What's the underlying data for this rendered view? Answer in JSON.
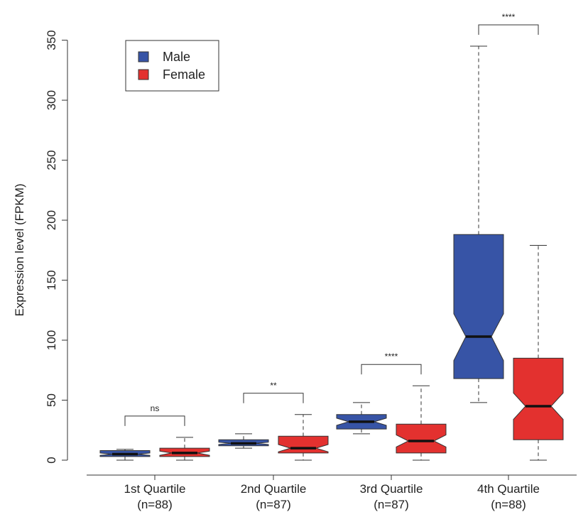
{
  "chart_data": {
    "type": "boxplot",
    "title": "",
    "ylabel": "Expression level (FPKM)",
    "xlabel": "",
    "ylim": [
      0,
      350
    ],
    "yticks": [
      0,
      50,
      100,
      150,
      200,
      250,
      300,
      350
    ],
    "grid": false,
    "notched": true,
    "legend": {
      "position": "top-left",
      "entries": [
        {
          "name": "Male",
          "color": "#3754a6"
        },
        {
          "name": "Female",
          "color": "#e3312f"
        }
      ]
    },
    "groups": [
      {
        "label": "1st Quartile",
        "sublabel": "(n=88)",
        "significance": "ns",
        "boxes": [
          {
            "series": "Male",
            "whisker_low": 0,
            "q1": 3,
            "median": 5,
            "q3": 8,
            "whisker_high": 9,
            "notch_low": 4,
            "notch_high": 6
          },
          {
            "series": "Female",
            "whisker_low": 0,
            "q1": 3,
            "median": 6,
            "q3": 10,
            "whisker_high": 19,
            "notch_low": 4,
            "notch_high": 7.5
          }
        ]
      },
      {
        "label": "2nd Quartile",
        "sublabel": "(n=87)",
        "significance": "**",
        "boxes": [
          {
            "series": "Male",
            "whisker_low": 10,
            "q1": 12,
            "median": 14,
            "q3": 17,
            "whisker_high": 22,
            "notch_low": 13,
            "notch_high": 15
          },
          {
            "series": "Female",
            "whisker_low": 0,
            "q1": 6,
            "median": 10,
            "q3": 20,
            "whisker_high": 38,
            "notch_low": 7,
            "notch_high": 13
          }
        ]
      },
      {
        "label": "3rd Quartile",
        "sublabel": "(n=87)",
        "significance": "****",
        "boxes": [
          {
            "series": "Male",
            "whisker_low": 22,
            "q1": 26,
            "median": 32,
            "q3": 38,
            "whisker_high": 48,
            "notch_low": 29,
            "notch_high": 35
          },
          {
            "series": "Female",
            "whisker_low": 0,
            "q1": 6,
            "median": 16,
            "q3": 30,
            "whisker_high": 62,
            "notch_low": 11,
            "notch_high": 21
          }
        ]
      },
      {
        "label": "4th Quartile",
        "sublabel": "(n=88)",
        "significance": "****",
        "boxes": [
          {
            "series": "Male",
            "whisker_low": 48,
            "q1": 68,
            "median": 103,
            "q3": 188,
            "whisker_high": 345,
            "notch_low": 83,
            "notch_high": 122
          },
          {
            "series": "Female",
            "whisker_low": 0,
            "q1": 17,
            "median": 45,
            "q3": 85,
            "whisker_high": 179,
            "notch_low": 34,
            "notch_high": 56
          }
        ]
      }
    ]
  }
}
